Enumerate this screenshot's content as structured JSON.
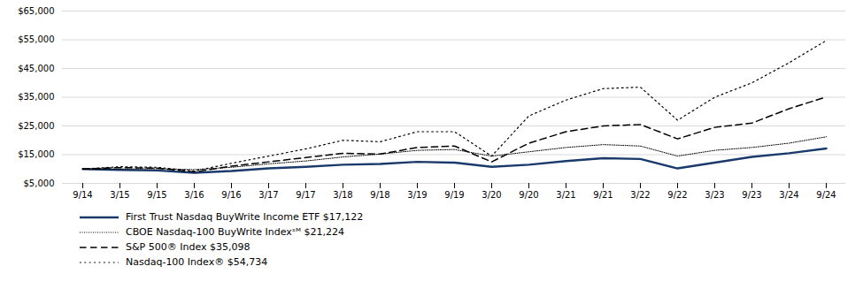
{
  "chart_data": {
    "type": "line",
    "categories": [
      "9/14",
      "3/15",
      "9/15",
      "3/16",
      "9/16",
      "3/17",
      "9/17",
      "3/18",
      "9/18",
      "3/19",
      "9/19",
      "3/20",
      "9/20",
      "3/21",
      "9/21",
      "3/22",
      "9/22",
      "3/23",
      "9/23",
      "3/24",
      "9/24"
    ],
    "series": [
      {
        "name": "First Trust Nasdaq BuyWrite Income ETF $17,122",
        "color": "#1a3a6b",
        "line_style": "solid",
        "values": [
          10000,
          9700,
          9500,
          8700,
          9300,
          10200,
          10800,
          11500,
          11800,
          12500,
          12200,
          10800,
          11500,
          12800,
          13800,
          13500,
          10200,
          12200,
          14200,
          15500,
          17122
        ]
      },
      {
        "name": "CBOE Nasdaq-100 BuyWrite Indexˢᴹ $21,224",
        "color": "#000000",
        "line_style": "densely_dotted",
        "values": [
          10000,
          10000,
          10100,
          9800,
          10600,
          11800,
          12800,
          14200,
          15200,
          16500,
          16800,
          14500,
          16000,
          17500,
          18500,
          18000,
          14500,
          16500,
          17500,
          19000,
          21224
        ]
      },
      {
        "name": "S&P 500® Index $35,098",
        "color": "#000000",
        "line_style": "dashed",
        "values": [
          10000,
          10500,
          10300,
          9000,
          11000,
          12500,
          14000,
          15500,
          15200,
          17500,
          18000,
          12500,
          19000,
          23000,
          25000,
          25500,
          20500,
          24500,
          26000,
          31000,
          35098
        ]
      },
      {
        "name": "Nasdaq-100 Index® $54,734",
        "color": "#000000",
        "line_style": "dotted",
        "values": [
          10000,
          10800,
          10600,
          9300,
          12000,
          14500,
          17000,
          20000,
          19500,
          23000,
          23000,
          14500,
          28500,
          34000,
          38000,
          38500,
          27000,
          35000,
          40000,
          47000,
          54734
        ]
      }
    ],
    "ylim": [
      5000,
      65000
    ],
    "yticks": [
      {
        "value": 5000,
        "label": "$5,000"
      },
      {
        "value": 15000,
        "label": "$15,000"
      },
      {
        "value": 25000,
        "label": "$25,000"
      },
      {
        "value": 35000,
        "label": "$35,000"
      },
      {
        "value": 45000,
        "label": "$45,000"
      },
      {
        "value": 55000,
        "label": "$55,000"
      },
      {
        "value": 65000,
        "label": "$65,000"
      }
    ],
    "grid": true,
    "legend": "bottom"
  }
}
